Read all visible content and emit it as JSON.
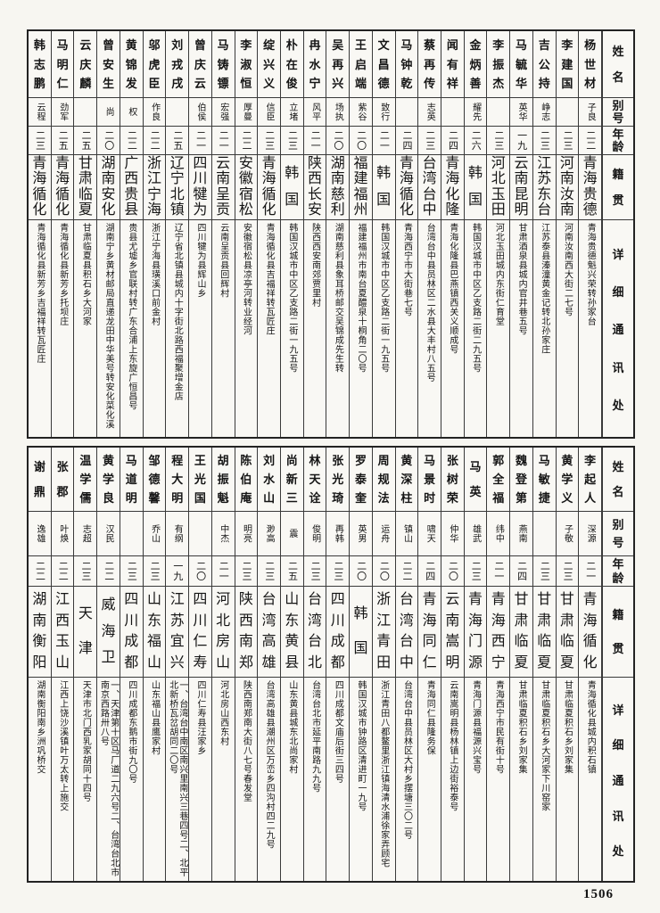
{
  "page": {
    "number": "1506"
  },
  "headers": {
    "name": "姓名",
    "alias": "别号",
    "age": "年龄",
    "origin": "籍贯",
    "address": "详细通讯处"
  },
  "tables": {
    "top": {
      "entries": [
        {
          "name": "杨世材",
          "alias": "子良",
          "age": "二二",
          "origin": "青海贵德",
          "address": "青海贵德魁兴荣转孙家台"
        },
        {
          "name": "李建国",
          "alias": "",
          "age": "二三",
          "origin": "河南汝南",
          "address": "河南汝南西大街二七号"
        },
        {
          "name": "吉公持",
          "alias": "峥志",
          "age": "二三",
          "origin": "江苏东台",
          "address": "江苏泰县溱潼黄金记转北孙家庄"
        },
        {
          "name": "马毓华",
          "alias": "英华",
          "age": "一九",
          "origin": "云南昆明",
          "address": "甘肃酒泉县城内官井巷五号"
        },
        {
          "name": "李振杰",
          "alias": "",
          "age": "二三",
          "origin": "河北玉田",
          "address": "河北玉田城内东街仁育堂"
        },
        {
          "name": "金炳善",
          "alias": "耀先",
          "age": "二六",
          "origin": "韩国",
          "address": "韩国汉城市中区乙支路二街二九五号"
        },
        {
          "name": "闻有祥",
          "alias": "",
          "age": "二四",
          "origin": "青海化隆",
          "address": "青海化隆县巴燕镇西关义顺成号"
        },
        {
          "name": "蔡再传",
          "alias": "志英",
          "age": "二三",
          "origin": "台湾台中",
          "address": "台湾台中县员林区二水县大丰村八五号"
        },
        {
          "name": "马钟乾",
          "alias": "",
          "age": "二四",
          "origin": "青海循化",
          "address": "青海西宁市大街巷七号"
        },
        {
          "name": "文昌德",
          "alias": "致行",
          "age": "二一",
          "origin": "韩国",
          "address": "韩国汉城市中区乙支路二街一九五号"
        },
        {
          "name": "王启端",
          "alias": "紫谷",
          "age": "二〇",
          "origin": "福建福州",
          "address": "福建福州市南台夏醴泉十桐角二〇号"
        },
        {
          "name": "吴再兴",
          "alias": "场执",
          "age": "二〇",
          "origin": "湖南慈利",
          "address": "湖南慈利县象耳桥邮交吴锦成先生转"
        },
        {
          "name": "冉水宁",
          "alias": "风平",
          "age": "二一",
          "origin": "陕西长安",
          "address": "陕西西安南郊贾里村"
        },
        {
          "name": "朴在俊",
          "alias": "立堵",
          "age": "二三",
          "origin": "韩国",
          "address": "韩国汉城市中区乙支路二街一九五号"
        },
        {
          "name": "绽兴义",
          "alias": "信臣",
          "age": "二三",
          "origin": "青海循化",
          "address": "青海循化县吉福祥转瓦匠庄"
        },
        {
          "name": "李淑恒",
          "alias": "厚曼",
          "age": "二二",
          "origin": "安徽宿松",
          "address": "安徽宿松县凉亭河转业经河"
        },
        {
          "name": "马铸镖",
          "alias": "宏强",
          "age": "二一",
          "origin": "云南呈贡",
          "address": "云南呈贡县回辉村"
        },
        {
          "name": "曾庆云",
          "alias": "伯侯",
          "age": "二一",
          "origin": "四川犍为",
          "address": "四川犍为县辉山乡"
        },
        {
          "name": "刘戎戌",
          "alias": "",
          "age": "二五",
          "origin": "辽宁北镇",
          "address": "辽宁省北镇县城内十字街北路西福聚增金店"
        },
        {
          "name": "邬虎臣",
          "alias": "作良",
          "age": "二二",
          "origin": "浙江宁海",
          "address": "浙江宁海县璜溪口前金村"
        },
        {
          "name": "黄锦发",
          "alias": "权",
          "age": "二二",
          "origin": "广西贵县",
          "address": "贵县尤墟乡官联村转广东合浦上东旋广恒昌号"
        },
        {
          "name": "曾安生",
          "alias": "尚",
          "age": "二〇",
          "origin": "湖南安化",
          "address": "湖南宁乡黄材邮局直递龙田中华美号转安化菜化溪"
        },
        {
          "name": "云庆麟",
          "alias": "",
          "age": "二五",
          "origin": "甘肃临夏",
          "address": "甘肃临夏县积石乡大河家"
        },
        {
          "name": "马明仁",
          "alias": "劲军",
          "age": "二五",
          "origin": "青海循化",
          "address": "青海循化县新芳乡托坝庄"
        },
        {
          "name": "韩志鹏",
          "alias": "云程",
          "age": "二三",
          "origin": "青海循化",
          "address": "青海循化县新芳乡吉福祥转瓦匠庄"
        }
      ]
    },
    "bottom": {
      "entries": [
        {
          "name": "李起人",
          "alias": "深源",
          "age": "二一",
          "origin": "青海循化",
          "address": "青海循化县城内积石镇"
        },
        {
          "name": "黄学义",
          "alias": "子敬",
          "age": "二三",
          "origin": "甘肃临夏",
          "address": "甘肃临夏积石乡刘家集"
        },
        {
          "name": "马敏捷",
          "alias": "",
          "age": "二三",
          "origin": "甘肃临夏",
          "address": "甘肃临夏积石乡大河家下川窑家"
        },
        {
          "name": "魏登第",
          "alias": "燕南",
          "age": "二四",
          "origin": "甘肃临夏",
          "address": "甘肃临夏积石乡刘家集"
        },
        {
          "name": "郭全福",
          "alias": "纬中",
          "age": "二一",
          "origin": "青海西宁",
          "address": "青海西宁市民有街十号"
        },
        {
          "name": "马英",
          "alias": "雄武",
          "age": "二三",
          "origin": "青海门源",
          "address": "青海门源县福源兴宝号"
        },
        {
          "name": "张树荣",
          "alias": "仲华",
          "age": "二〇",
          "origin": "云南嵩明",
          "address": "云南嵩明县杨林镇上边街裕泰号"
        },
        {
          "name": "马景时",
          "alias": "啸天",
          "age": "二四",
          "origin": "青海同仁",
          "address": "青海同仁县隆务保"
        },
        {
          "name": "黄深柱",
          "alias": "镇山",
          "age": "二二",
          "origin": "台湾台中",
          "address": "台湾台中县员林区大村乡摆塘三〇二号"
        },
        {
          "name": "周规法",
          "alias": "运舟",
          "age": "二〇",
          "origin": "浙江青田",
          "address": "浙江青田八都鳌里浙江镇海清水浦徐家弄顾宅"
        },
        {
          "name": "罗泰奎",
          "alias": "英男",
          "age": "二〇",
          "origin": "韩国",
          "address": "韩国汉城市钟路区清进町一九号"
        },
        {
          "name": "张光琦",
          "alias": "再韩",
          "age": "二三",
          "origin": "四川成都",
          "address": "四川成都文庙后街三四号"
        },
        {
          "name": "林天诠",
          "alias": "俊明",
          "age": "二三",
          "origin": "台湾台北",
          "address": "台湾台北市延平南路九九号"
        },
        {
          "name": "尚新三",
          "alias": "震",
          "age": "二五",
          "origin": "山东黄县",
          "address": "山东黄县城东北尚家村"
        },
        {
          "name": "刘水山",
          "alias": "渺高",
          "age": "二三",
          "origin": "台湾高雄",
          "address": "台湾高雄县潮州区万峦乡四沟村四二九号"
        },
        {
          "name": "陈伯庵",
          "alias": "明亮",
          "age": "二三",
          "origin": "陕西南郑",
          "address": "陕西南郑南大街八七号春发堂"
        },
        {
          "name": "胡振魁",
          "alias": "中杰",
          "age": "二一",
          "origin": "河北房山",
          "address": "河北房山西东村"
        },
        {
          "name": "王光国",
          "alias": "",
          "age": "二〇",
          "origin": "四川仁寿",
          "address": "四川仁寿县汪家乡"
        },
        {
          "name": "程大明",
          "alias": "有纲",
          "age": "一九",
          "origin": "江苏宜兴",
          "address": "一、台湾台中南区南兴里南兴三巷四号二、北平北新桥瓦岔胡同二〇号"
        },
        {
          "name": "邹德馨",
          "alias": "乔山",
          "age": "二三",
          "origin": "山东福山",
          "address": "山东福山县鹰家村"
        },
        {
          "name": "马道明",
          "alias": "",
          "age": "二三",
          "origin": "四川成都",
          "address": "四川成都东鹅市街九〇号"
        },
        {
          "name": "黄学良",
          "alias": "汉民",
          "age": "二二",
          "origin": "威海卫",
          "address": "一、天津第十区马厂道二九六号二、台湾台北市南京西路卅八号"
        },
        {
          "name": "温学儒",
          "alias": "志超",
          "age": "二三",
          "origin": "天津",
          "address": "天津市北门西乳家胡同十四号"
        },
        {
          "name": "张郡",
          "alias": "叶焕",
          "age": "二二",
          "origin": "江西玉山",
          "address": "江西上饶沙溪镇叶万太转上施交"
        },
        {
          "name": "谢鼎",
          "alias": "逸雄",
          "age": "二二",
          "origin": "湖南衡阳",
          "address": "湖南衡阳南乡洲巩桥交"
        }
      ]
    }
  }
}
